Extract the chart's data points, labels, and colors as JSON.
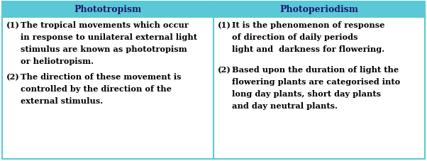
{
  "header_bg": "#5BC8D8",
  "header_text_color": "#1a1a6e",
  "cell_bg": "#ffffff",
  "border_color": "#5BC8D8",
  "col1_header": "Phototropism",
  "col2_header": "Photoperiodism",
  "col1_points": [
    [
      "(1)",
      "The tropical movements which occur\nin response to unilateral external light\nstimulus are known as phototropism\nor heliotropism."
    ],
    [
      "(2)",
      "The direction of these movement is\ncontrolled by the direction of the\nexternal stimulus."
    ]
  ],
  "col2_points": [
    [
      "(1)",
      "It is the phenomenon of response\nof direction of daily periods\nlight and  darkness for flowering."
    ],
    [
      "(2)",
      "Based upon the duration of light the\nflowering plants are categorised into\nlong day plants, short day plants\nand day neutral plants."
    ]
  ],
  "header_fontsize": 9.0,
  "body_fontsize": 8.2,
  "fig_width": 6.02,
  "fig_height": 2.28,
  "dpi": 100
}
